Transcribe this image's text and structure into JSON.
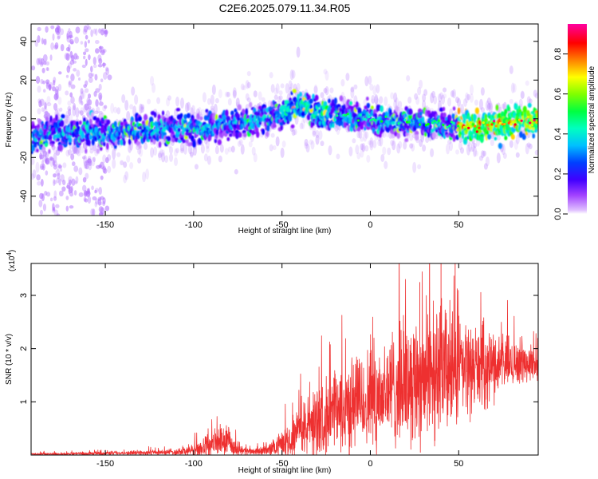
{
  "title": "C2E6.2025.079.11.34.R05",
  "colors": {
    "snr_line": "#ee3030",
    "frame": "#000000"
  },
  "chart_data": [
    {
      "type": "heatmap",
      "title": "C2E6.2025.079.11.34.R05",
      "xlabel": "Height of straight line (km)",
      "ylabel": "Frequency (Hz)",
      "xlim": [
        -192,
        95
      ],
      "ylim": [
        -50,
        49
      ],
      "xticks": [
        -150,
        -100,
        -50,
        0,
        50
      ],
      "xtick_labels": [
        "-150",
        "-100",
        "-50",
        "0",
        "50"
      ],
      "yticks": [
        -40,
        -20,
        0,
        20,
        40
      ],
      "ytick_labels": [
        "-40",
        "-20",
        "0",
        "20",
        "40"
      ],
      "colorbar": {
        "label": "Normalized spectral amplitude",
        "range": [
          0.0,
          0.95
        ],
        "ticks": [
          0.0,
          0.2,
          0.4,
          0.6,
          0.8
        ],
        "tick_labels": [
          "0.0",
          "0.2",
          "0.4",
          "0.6",
          "0.8"
        ],
        "stops": [
          "#ffffff",
          "#c080ff",
          "#8000ff",
          "#0000ff",
          "#00c0ff",
          "#00ffc0",
          "#00ff00",
          "#c0ff00",
          "#ffff00",
          "#ff8000",
          "#ff0000",
          "#ff00a0"
        ]
      },
      "band_center": {
        "x": [
          -192,
          -180,
          -165,
          -150,
          -130,
          -110,
          -95,
          -85,
          -70,
          -55,
          -45,
          -38,
          -30,
          -20,
          -10,
          0,
          15,
          30,
          45,
          60,
          75,
          85,
          95
        ],
        "y": [
          -10,
          -7,
          -7,
          -7,
          -6,
          -5,
          -5,
          -3,
          -2,
          2,
          5,
          7,
          3,
          2,
          1,
          0,
          -2,
          -2,
          -3,
          -4,
          -3,
          -1,
          -1
        ]
      },
      "band_halfwidth_hz": 6,
      "broadband_noise_columns_km": [
        -185,
        -178,
        -168,
        -160,
        -153
      ]
    },
    {
      "type": "line",
      "xlabel": "Height of straight line (km)",
      "ylabel": "SNR (10 * v/v)",
      "y_multiplier_label": "(x10",
      "y_multiplier_exp": "4",
      "y_multiplier_close": ")",
      "xlim": [
        -192,
        95
      ],
      "ylim": [
        0,
        3.6
      ],
      "xticks": [
        -150,
        -100,
        -50,
        0,
        50
      ],
      "xtick_labels": [
        "-150",
        "-100",
        "-50",
        "0",
        "50"
      ],
      "yticks": [
        1,
        2,
        3
      ],
      "ytick_labels": [
        "1",
        "2",
        "3"
      ],
      "series": [
        {
          "name": "SNR",
          "x": [
            -192,
            -180,
            -160,
            -140,
            -120,
            -110,
            -100,
            -95,
            -90,
            -85,
            -80,
            -75,
            -70,
            -60,
            -55,
            -50,
            -45,
            -40,
            -35,
            -30,
            -25,
            -20,
            -15,
            -10,
            -5,
            0,
            5,
            10,
            15,
            20,
            25,
            30,
            35,
            40,
            45,
            50,
            55,
            60,
            65,
            70,
            75,
            80,
            85,
            90,
            95
          ],
          "envelope_mean": [
            0.02,
            0.02,
            0.03,
            0.04,
            0.05,
            0.06,
            0.09,
            0.13,
            0.2,
            0.25,
            0.22,
            0.12,
            0.07,
            0.08,
            0.12,
            0.22,
            0.35,
            0.45,
            0.55,
            0.65,
            0.7,
            0.78,
            0.85,
            0.95,
            1.0,
            1.05,
            1.15,
            1.2,
            1.3,
            1.4,
            1.45,
            1.5,
            1.55,
            1.6,
            1.6,
            1.6,
            1.62,
            1.65,
            1.65,
            1.7,
            1.72,
            1.72,
            1.75,
            1.72,
            1.7
          ],
          "envelope_spread": [
            0.03,
            0.03,
            0.04,
            0.05,
            0.06,
            0.08,
            0.15,
            0.22,
            0.28,
            0.35,
            0.3,
            0.15,
            0.08,
            0.1,
            0.18,
            0.3,
            0.45,
            0.6,
            0.7,
            0.85,
            0.9,
            1.0,
            1.05,
            1.1,
            1.15,
            1.2,
            1.3,
            1.35,
            1.4,
            1.45,
            1.5,
            1.6,
            1.6,
            1.6,
            1.5,
            1.3,
            1.1,
            1.0,
            0.9,
            0.8,
            0.7,
            0.6,
            0.5,
            0.4,
            0.35
          ],
          "approx_peaks": [
            {
              "x": 40,
              "y": 3.6
            },
            {
              "x": 48,
              "y": 3.6
            },
            {
              "x": 28,
              "y": 3.25
            }
          ]
        }
      ]
    }
  ]
}
